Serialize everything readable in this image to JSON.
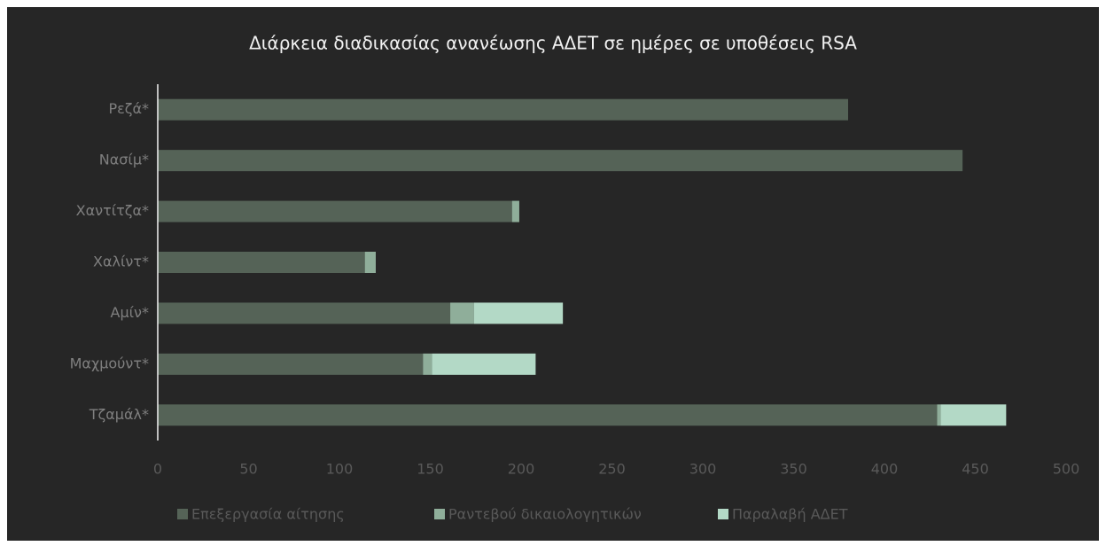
{
  "chart_data": {
    "type": "stacked-barh",
    "title": "Διάρκεια διαδικασίας ανανέωσης ΑΔΕΤ σε ημέρες σε υποθέσεις RSA",
    "categories": [
      "Ρεζά*",
      "Νασίμ*",
      "Χαντίτζα*",
      "Χαλίντ*",
      "Αμίν*",
      "Μαχμούντ*",
      "Τζαμάλ*"
    ],
    "series": [
      {
        "name": "Επεξεργασία αίτησης",
        "color": "#556357",
        "values": [
          380,
          443,
          195,
          114,
          161,
          146,
          429
        ]
      },
      {
        "name": "Ραντεβού δικαιολογητικών",
        "color": "#8fae9a",
        "values": [
          0,
          0,
          4,
          6,
          13,
          5,
          2
        ]
      },
      {
        "name": "Παραλαβή ΑΔΕΤ",
        "color": "#b3d9c6",
        "values": [
          0,
          0,
          0,
          0,
          49,
          57,
          36
        ]
      }
    ],
    "xlim": [
      0,
      500
    ],
    "xticks": [
      0,
      50,
      100,
      150,
      200,
      250,
      300,
      350,
      400,
      450,
      500
    ],
    "grid": false,
    "legend": "bottom"
  }
}
